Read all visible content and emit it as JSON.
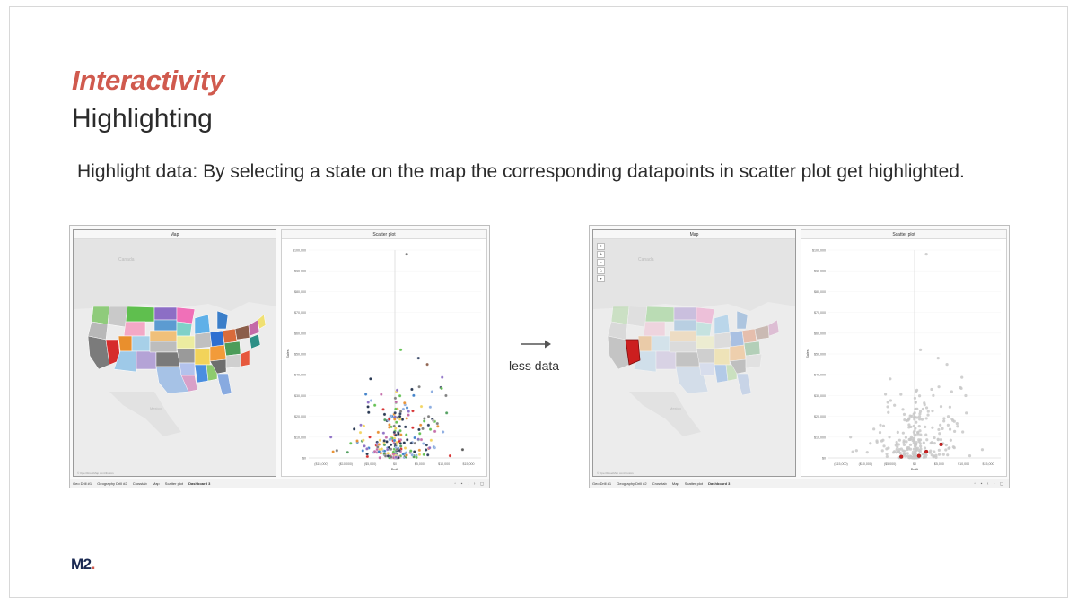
{
  "slide": {
    "title": "Interactivity",
    "subtitle": "Highlighting",
    "description": "Highlight data: By selecting a state on the map the corresponding datapoints in scatter plot get highlighted.",
    "arrow_label": "less data",
    "logo_text": "M2",
    "logo_dot": ".",
    "accent_color": "#d05a4e",
    "logo_color": "#1b2a52"
  },
  "dashboard": {
    "map_title": "Map",
    "scatter_title": "Scatter plot",
    "map_label_country": "Canada",
    "map_label_mexico": "Mexico",
    "scatter_x_label": "Profit",
    "scatter_y_label": "Sales",
    "y_ticks": [
      "$100,000",
      "$90,000",
      "$80,000",
      "$70,000",
      "$60,000",
      "$50,000",
      "$40,000",
      "$30,000",
      "$20,000",
      "$10,000",
      "$0"
    ],
    "x_ticks": [
      "($15,000)",
      "($10,000)",
      "($5,000)",
      "$0",
      "$5,000",
      "$10,000",
      "$15,000"
    ],
    "tabs": [
      "Geo Drill #1",
      "Geography Drill #2",
      "Crosstab",
      "Map",
      "Scatter plot",
      "Dashboard 3"
    ],
    "active_tab": "Dashboard 3",
    "map_tools": [
      "⌕",
      "+",
      "−",
      "⌂",
      "▸"
    ],
    "highlight_color": "#cc1f1f",
    "dim_color": "#c8c8c8"
  }
}
